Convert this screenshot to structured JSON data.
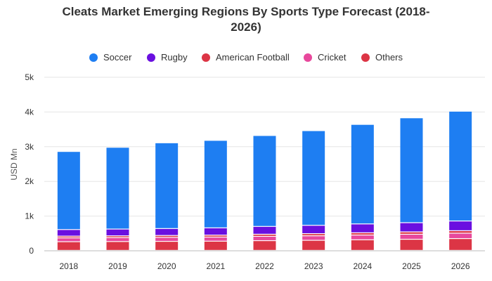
{
  "chart_data": {
    "type": "bar",
    "stacked": true,
    "title_lines": [
      "Cleats Market Emerging Regions By Sports Type Forecast (2018-",
      "2026)"
    ],
    "xlabel": "",
    "ylabel": "USD Mn",
    "ylim": [
      0,
      5000
    ],
    "yticks": [
      0,
      1000,
      2000,
      3000,
      4000,
      5000
    ],
    "ytick_labels": [
      "0",
      "1k",
      "2k",
      "3k",
      "4k",
      "5k"
    ],
    "grid": true,
    "legend_position": "top",
    "categories": [
      "2018",
      "2019",
      "2020",
      "2021",
      "2022",
      "2023",
      "2024",
      "2025",
      "2026"
    ],
    "series": [
      {
        "name": "Others",
        "color": "#dc3545",
        "values": [
          250,
          255,
          260,
          265,
          280,
          290,
          305,
          320,
          340
        ]
      },
      {
        "name": "Cricket",
        "color": "#e8489c",
        "values": [
          110,
          112,
          115,
          118,
          125,
          130,
          137,
          145,
          155
        ]
      },
      {
        "name": "American Football",
        "color": "#dc3545",
        "values": [
          50,
          52,
          54,
          56,
          60,
          62,
          65,
          68,
          72
        ]
      },
      {
        "name": "Rugby",
        "color": "#6a0fe0",
        "values": [
          190,
          195,
          200,
          210,
          225,
          240,
          255,
          265,
          280
        ]
      },
      {
        "name": "Soccer",
        "color": "#1e7ef2",
        "values": [
          2250,
          2356,
          2471,
          2521,
          2620,
          2728,
          2868,
          3022,
          3163
        ]
      }
    ],
    "legend_order": [
      "Soccer",
      "Rugby",
      "American Football",
      "Cricket",
      "Others"
    ]
  }
}
